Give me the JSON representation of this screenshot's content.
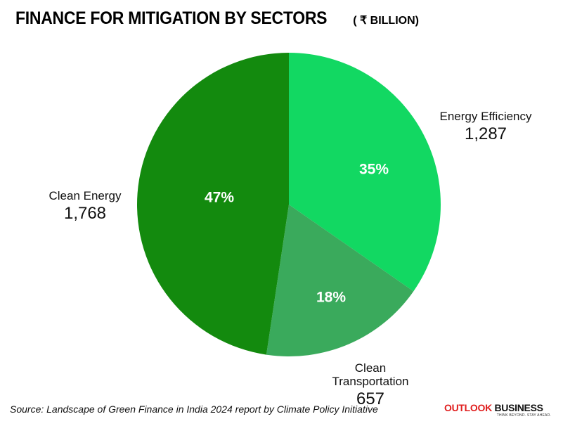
{
  "chart_data": {
    "type": "pie",
    "title": "FINANCE FOR MITIGATION BY SECTORS",
    "unit_label": "( ₹ BILLION)",
    "slices": [
      {
        "label": "Energy Efficiency",
        "value": 1287,
        "value_label": "1,287",
        "percent_label": "35%",
        "color": "#12d862"
      },
      {
        "label": "Clean Transportation",
        "value": 657,
        "value_label": "657",
        "percent_label": "18%",
        "color": "#3aaa5c"
      },
      {
        "label": "Clean Energy",
        "value": 1768,
        "value_label": "1,768",
        "percent_label": "47%",
        "color": "#138a0e"
      }
    ],
    "start_angle": "12 o'clock, clockwise"
  },
  "source": "Source: Landscape of Green Finance in India 2024 report by Climate Policy Initiative",
  "brand": {
    "part1": "OUTLOOK",
    "part2": "BUSINESS",
    "tagline": "THINK BEYOND. STAY AHEAD.",
    "accent_color": "#e01e1e"
  }
}
